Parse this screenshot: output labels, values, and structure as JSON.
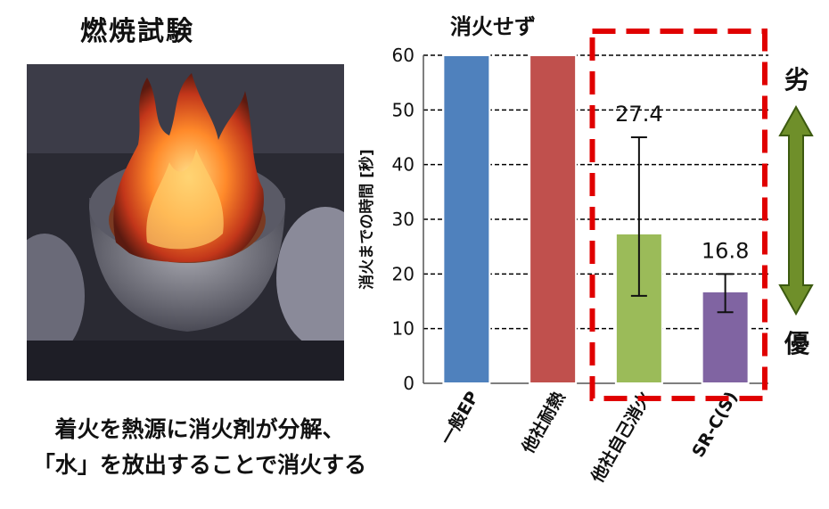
{
  "title": "燃焼試験",
  "caption": [
    "着火を熱源に消火剤が分解、",
    "「水」を放出することで消火する"
  ],
  "scale": {
    "worse": "劣",
    "better": "優"
  },
  "chart_data": {
    "type": "bar",
    "title": "消火せず",
    "ylabel": "消火までの時間 [秒]",
    "xlabel": "",
    "ylim": [
      0,
      60
    ],
    "yticks": [
      0,
      10,
      20,
      30,
      40,
      50,
      60
    ],
    "grid": true,
    "categories": [
      "一般EP",
      "他社耐熱",
      "他社自己消火",
      "SR-C(S)"
    ],
    "values": [
      60,
      60,
      27.4,
      16.8
    ],
    "error_low": [
      null,
      null,
      16,
      13
    ],
    "error_high": [
      null,
      null,
      45,
      20
    ],
    "data_labels": [
      "",
      "",
      "27.4",
      "16.8"
    ],
    "colors": [
      "#4f81bd",
      "#c0504d",
      "#9bbb59",
      "#8064a2"
    ],
    "highlight": {
      "categories": [
        "他社自己消火",
        "SR-C(S)"
      ],
      "color": "#e00000",
      "style": "dashed"
    }
  }
}
